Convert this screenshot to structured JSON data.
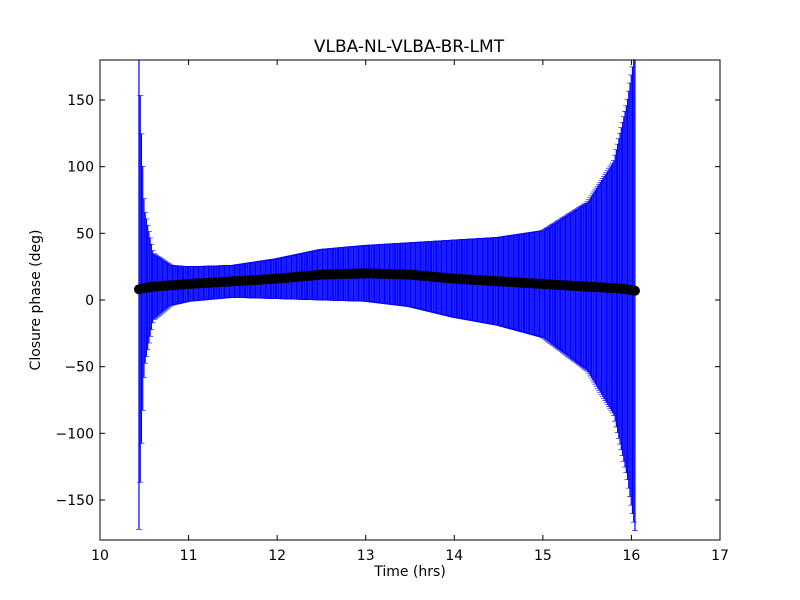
{
  "chart_data": {
    "type": "scatter",
    "title": "VLBA-NL-VLBA-BR-LMT",
    "xlabel": "Time (hrs)",
    "ylabel": "Closure phase (deg)",
    "xlim": [
      10,
      17
    ],
    "ylim": [
      -180,
      180
    ],
    "xticks": [
      10,
      11,
      12,
      13,
      14,
      15,
      16,
      17
    ],
    "xtick_labels": [
      "10",
      "11",
      "12",
      "13",
      "14",
      "15",
      "16",
      "17"
    ],
    "yticks": [
      -150,
      -100,
      -50,
      0,
      50,
      100,
      150
    ],
    "ytick_labels": [
      "−150",
      "−100",
      "−50",
      "0",
      "50",
      "100",
      "150"
    ],
    "grid": false,
    "series": [
      {
        "marker": "circle",
        "color": "#000000",
        "errorbar_color": "#0000ff",
        "x_range": [
          10.44,
          16.04
        ],
        "points": [
          {
            "x": 10.44,
            "y": 8,
            "err": 180
          },
          {
            "x": 10.46,
            "y": 8.5,
            "err": 130
          },
          {
            "x": 10.5,
            "y": 9,
            "err": 60
          },
          {
            "x": 10.6,
            "y": 10,
            "err": 25
          },
          {
            "x": 10.8,
            "y": 11,
            "err": 15
          },
          {
            "x": 11.0,
            "y": 12,
            "err": 13
          },
          {
            "x": 11.5,
            "y": 14,
            "err": 12
          },
          {
            "x": 12.0,
            "y": 16,
            "err": 15
          },
          {
            "x": 12.5,
            "y": 19,
            "err": 19
          },
          {
            "x": 13.0,
            "y": 20,
            "err": 21
          },
          {
            "x": 13.5,
            "y": 19,
            "err": 24
          },
          {
            "x": 14.0,
            "y": 16,
            "err": 29
          },
          {
            "x": 14.5,
            "y": 14,
            "err": 33
          },
          {
            "x": 15.0,
            "y": 12,
            "err": 40
          },
          {
            "x": 15.5,
            "y": 10,
            "err": 63
          },
          {
            "x": 15.8,
            "y": 9,
            "err": 95
          },
          {
            "x": 15.95,
            "y": 8,
            "err": 140
          },
          {
            "x": 16.04,
            "y": 7,
            "err": 180
          }
        ]
      }
    ],
    "colors": {
      "errorbar": "#0000ff",
      "marker": "#000000",
      "axes": "#000000",
      "background": "#ffffff"
    }
  }
}
